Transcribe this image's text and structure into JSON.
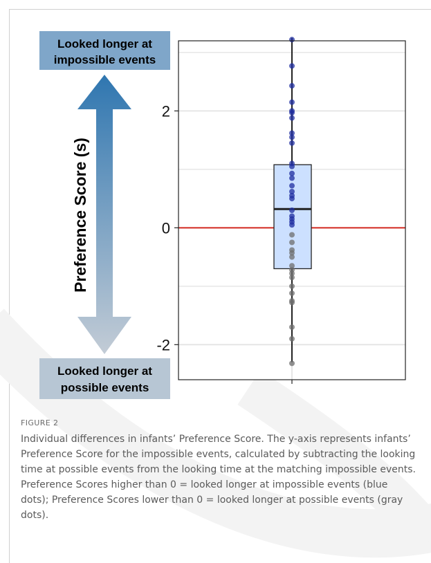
{
  "figure": {
    "label": "FIGURE 2",
    "caption": "Individual differences in infants’ Preference Score. The y-axis represents infants’ Preference Score for the impossible events, calculated by subtracting the looking time at possible events from the looking time at the matching impossible events. Preference Scores higher than 0 = looked longer at impossible events (blue dots); Preference Scores lower than 0 = looked longer at possible events (gray dots)."
  },
  "annotation": {
    "top_box": [
      "Looked longer at",
      "impossible events"
    ],
    "bottom_box": [
      "Looked longer at",
      "possible events"
    ],
    "axis_title": "Preference Score (s)",
    "colors": {
      "top_box": "#7fa6c9",
      "bottom_box": "#b7c6d4",
      "arrow_top": "#2f76b0",
      "arrow_bottom": "#c3ccd6"
    }
  },
  "chart_data": {
    "type": "box",
    "ylim": [
      -2.6,
      3.2
    ],
    "yticks": [
      {
        "value": -2,
        "label": "-2"
      },
      {
        "value": 0,
        "label": "0"
      },
      {
        "value": 2,
        "label": "2"
      }
    ],
    "grid": true,
    "reference_line": {
      "value": 0,
      "color": "#d42a20"
    },
    "box": {
      "q1": -0.7,
      "median": 0.32,
      "q3": 1.08,
      "whisker_low": -2.3,
      "whisker_high": 3.25
    },
    "points_above_zero": [
      3.22,
      2.77,
      2.43,
      2.15,
      2.0,
      1.97,
      1.88,
      1.62,
      1.55,
      1.45,
      1.1,
      1.05,
      0.93,
      0.85,
      0.72,
      0.62,
      0.55,
      0.5,
      0.3,
      0.2,
      0.15,
      0.1,
      0.05
    ],
    "points_below_zero": [
      -0.12,
      -0.25,
      -0.38,
      -0.43,
      -0.5,
      -0.65,
      -0.72,
      -0.78,
      -0.85,
      -1.0,
      -1.12,
      -1.25,
      -1.28,
      -1.7,
      -1.9,
      -2.32
    ],
    "colors": {
      "above": "#1f2ea0",
      "below": "#6e6e6e",
      "box_fill": "#cce0ff",
      "box_stroke": "#222222",
      "grid": "#e6e6e6"
    }
  }
}
